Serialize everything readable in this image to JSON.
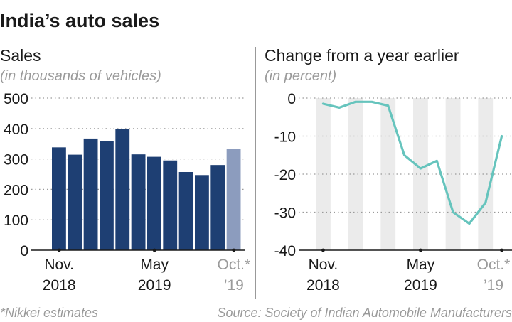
{
  "title": "India’s auto sales",
  "footnote": "*Nikkei estimates",
  "source": "Source: Society of Indian Automobile Manufacturers",
  "chart_data": [
    {
      "type": "bar",
      "title": "Sales",
      "subtitle": "(in thousands of vehicles)",
      "categories": [
        "Nov 2018",
        "Dec 2018",
        "Jan 2019",
        "Feb 2019",
        "Mar 2019",
        "Apr 2019",
        "May 2019",
        "Jun 2019",
        "Jul 2019",
        "Aug 2019",
        "Sep 2019",
        "Oct 2019"
      ],
      "values": [
        338,
        314,
        367,
        358,
        399,
        315,
        307,
        295,
        257,
        247,
        280,
        333
      ],
      "estimated": [
        false,
        false,
        false,
        false,
        false,
        false,
        false,
        false,
        false,
        false,
        false,
        true
      ],
      "ylim": [
        0,
        500
      ],
      "yticks": [
        0,
        100,
        200,
        300,
        400,
        500
      ],
      "xtick_labels": [
        {
          "line1": "Nov.",
          "line2": "2018",
          "index": 0,
          "estimate": false
        },
        {
          "line1": "May",
          "line2": "2019",
          "index": 6,
          "estimate": false
        },
        {
          "line1": "Oct.*",
          "line2": "’19",
          "index": 11,
          "estimate": true
        }
      ],
      "grid": true,
      "colors": {
        "actual": "#1e3f73",
        "estimate": "#8c9cbe"
      }
    },
    {
      "type": "line",
      "title": "Change from a year earlier",
      "subtitle": "(in percent)",
      "categories": [
        "Nov 2018",
        "Dec 2018",
        "Jan 2019",
        "Feb 2019",
        "Mar 2019",
        "Apr 2019",
        "May 2019",
        "Jun 2019",
        "Jul 2019",
        "Aug 2019",
        "Sep 2019",
        "Oct 2019"
      ],
      "values": [
        -1.5,
        -2.5,
        -1.0,
        -1.0,
        -2.0,
        -15.0,
        -18.5,
        -16.5,
        -30.0,
        -33.0,
        -27.5,
        -10.0
      ],
      "ylim": [
        -40,
        0
      ],
      "yticks": [
        0,
        -10,
        -20,
        -30,
        -40
      ],
      "xtick_labels": [
        {
          "line1": "Nov.",
          "line2": "2018",
          "index": 0,
          "estimate": false
        },
        {
          "line1": "May",
          "line2": "2019",
          "index": 6,
          "estimate": false
        },
        {
          "line1": "Oct.*",
          "line2": "’19",
          "index": 11,
          "estimate": true
        }
      ],
      "shaded_months": [
        0,
        2,
        4,
        6,
        8,
        10
      ],
      "grid": true,
      "colors": {
        "line": "#66c4bd",
        "band": "#ebebeb"
      }
    }
  ]
}
